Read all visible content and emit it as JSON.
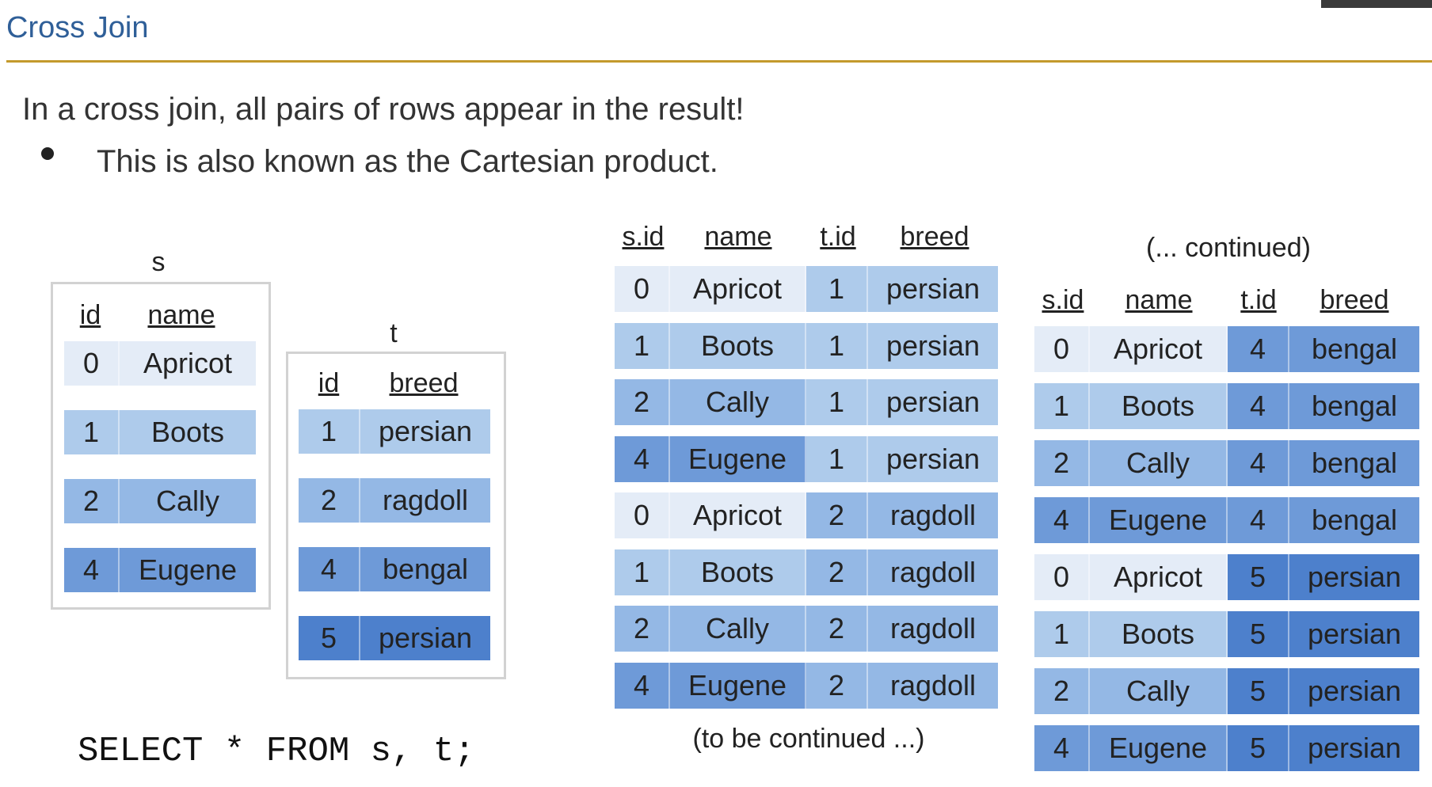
{
  "slide": {
    "title": "Cross Join",
    "intro": "In a cross join, all pairs of rows appear in the result!",
    "bullet": "This is also known as the Cartesian product.",
    "sql": "SELECT * FROM s, t;"
  },
  "shade_colors": [
    "#e4ecf7",
    "#aecbeb",
    "#94b8e5",
    "#6e9ad8",
    "#4d80cc"
  ],
  "table_s": {
    "name": "s",
    "headers": [
      "id",
      "name"
    ],
    "rows": [
      [
        "0",
        "Apricot"
      ],
      [
        "1",
        "Boots"
      ],
      [
        "2",
        "Cally"
      ],
      [
        "4",
        "Eugene"
      ]
    ]
  },
  "table_t": {
    "name": "t",
    "headers": [
      "id",
      "breed"
    ],
    "rows": [
      [
        "1",
        "persian"
      ],
      [
        "2",
        "ragdoll"
      ],
      [
        "4",
        "bengal"
      ],
      [
        "5",
        "persian"
      ]
    ]
  },
  "result1": {
    "headers": [
      "s.id",
      "name",
      "t.id",
      "breed"
    ],
    "rows": [
      [
        "0",
        "Apricot",
        "1",
        "persian"
      ],
      [
        "1",
        "Boots",
        "1",
        "persian"
      ],
      [
        "2",
        "Cally",
        "1",
        "persian"
      ],
      [
        "4",
        "Eugene",
        "1",
        "persian"
      ],
      [
        "0",
        "Apricot",
        "2",
        "ragdoll"
      ],
      [
        "1",
        "Boots",
        "2",
        "ragdoll"
      ],
      [
        "2",
        "Cally",
        "2",
        "ragdoll"
      ],
      [
        "4",
        "Eugene",
        "2",
        "ragdoll"
      ]
    ],
    "caption": "(to be continued ...)"
  },
  "result2": {
    "title": "(... continued)",
    "headers": [
      "s.id",
      "name",
      "t.id",
      "breed"
    ],
    "rows": [
      [
        "0",
        "Apricot",
        "4",
        "bengal"
      ],
      [
        "1",
        "Boots",
        "4",
        "bengal"
      ],
      [
        "2",
        "Cally",
        "4",
        "bengal"
      ],
      [
        "4",
        "Eugene",
        "4",
        "bengal"
      ],
      [
        "0",
        "Apricot",
        "5",
        "persian"
      ],
      [
        "1",
        "Boots",
        "5",
        "persian"
      ],
      [
        "2",
        "Cally",
        "5",
        "persian"
      ],
      [
        "4",
        "Eugene",
        "5",
        "persian"
      ]
    ]
  }
}
